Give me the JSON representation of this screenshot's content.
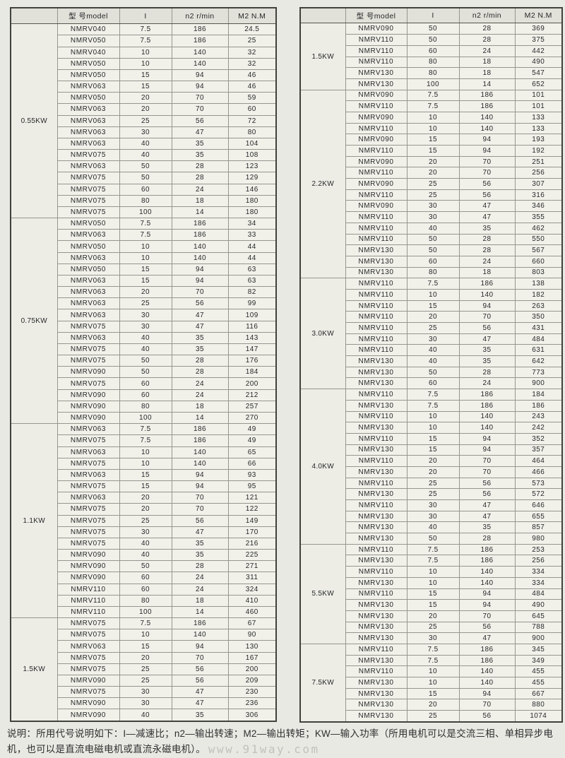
{
  "header": {
    "power_col": "",
    "model_col": "型 号model",
    "ratio_col": "I",
    "speed_col": "n2 r/min",
    "torque_col": "M2 N.M"
  },
  "note": {
    "text": "说明：所用代号说明如下：I—减速比；n2—输出转速；M2—输出转矩；KW—输入功率（所用电机可以是交流三相、单相异步电机，也可以是直流电磁电机或直流永磁电机）。",
    "watermark": "www.91way.com"
  },
  "tables": [
    {
      "name": "left",
      "groups": [
        {
          "power": "0.55KW",
          "rows": [
            [
              "NMRV040",
              "7.5",
              "186",
              "24.5"
            ],
            [
              "NMRV050",
              "7.5",
              "186",
              "25"
            ],
            [
              "NMRV040",
              "10",
              "140",
              "32"
            ],
            [
              "NMRV050",
              "10",
              "140",
              "32"
            ],
            [
              "NMRV050",
              "15",
              "94",
              "46"
            ],
            [
              "NMRV063",
              "15",
              "94",
              "46"
            ],
            [
              "NMRV050",
              "20",
              "70",
              "59"
            ],
            [
              "NMRV063",
              "20",
              "70",
              "60"
            ],
            [
              "NMRV063",
              "25",
              "56",
              "72"
            ],
            [
              "NMRV063",
              "30",
              "47",
              "80"
            ],
            [
              "NMRV063",
              "40",
              "35",
              "104"
            ],
            [
              "NMRV075",
              "40",
              "35",
              "108"
            ],
            [
              "NMRV063",
              "50",
              "28",
              "123"
            ],
            [
              "NMRV075",
              "50",
              "28",
              "129"
            ],
            [
              "NMRV075",
              "60",
              "24",
              "146"
            ],
            [
              "NMRV075",
              "80",
              "18",
              "180"
            ],
            [
              "NMRV075",
              "100",
              "14",
              "180"
            ]
          ]
        },
        {
          "power": "0.75KW",
          "rows": [
            [
              "NMRV050",
              "7.5",
              "186",
              "34"
            ],
            [
              "NMRV063",
              "7.5",
              "186",
              "33"
            ],
            [
              "NMRV050",
              "10",
              "140",
              "44"
            ],
            [
              "NMRV063",
              "10",
              "140",
              "44"
            ],
            [
              "NMRV050",
              "15",
              "94",
              "63"
            ],
            [
              "NMRV063",
              "15",
              "94",
              "63"
            ],
            [
              "NMRV063",
              "20",
              "70",
              "82"
            ],
            [
              "NMRV063",
              "25",
              "56",
              "99"
            ],
            [
              "NMRV063",
              "30",
              "47",
              "109"
            ],
            [
              "NMRV075",
              "30",
              "47",
              "116"
            ],
            [
              "NMRV063",
              "40",
              "35",
              "143"
            ],
            [
              "NMRV075",
              "40",
              "35",
              "147"
            ],
            [
              "NMRV075",
              "50",
              "28",
              "176"
            ],
            [
              "NMRV090",
              "50",
              "28",
              "184"
            ],
            [
              "NMRV075",
              "60",
              "24",
              "200"
            ],
            [
              "NMRV090",
              "60",
              "24",
              "212"
            ],
            [
              "NMRV090",
              "80",
              "18",
              "257"
            ],
            [
              "NMRV090",
              "100",
              "14",
              "270"
            ]
          ]
        },
        {
          "power": "1.1KW",
          "rows": [
            [
              "NMRV063",
              "7.5",
              "186",
              "49"
            ],
            [
              "NMRV075",
              "7.5",
              "186",
              "49"
            ],
            [
              "NMRV063",
              "10",
              "140",
              "65"
            ],
            [
              "NMRV075",
              "10",
              "140",
              "66"
            ],
            [
              "NMRV063",
              "15",
              "94",
              "93"
            ],
            [
              "NMRV075",
              "15",
              "94",
              "95"
            ],
            [
              "NMRV063",
              "20",
              "70",
              "121"
            ],
            [
              "NMRV075",
              "20",
              "70",
              "122"
            ],
            [
              "NMRV075",
              "25",
              "56",
              "149"
            ],
            [
              "NMRV075",
              "30",
              "47",
              "170"
            ],
            [
              "NMRV075",
              "40",
              "35",
              "216"
            ],
            [
              "NMRV090",
              "40",
              "35",
              "225"
            ],
            [
              "NMRV090",
              "50",
              "28",
              "271"
            ],
            [
              "NMRV090",
              "60",
              "24",
              "311"
            ],
            [
              "NMRV110",
              "60",
              "24",
              "324"
            ],
            [
              "NMRV110",
              "80",
              "18",
              "410"
            ],
            [
              "NMRV110",
              "100",
              "14",
              "460"
            ]
          ]
        },
        {
          "power": "1.5KW",
          "rows": [
            [
              "NMRV075",
              "7.5",
              "186",
              "67"
            ],
            [
              "NMRV075",
              "10",
              "140",
              "90"
            ],
            [
              "NMRV063",
              "15",
              "94",
              "130"
            ],
            [
              "NMRV075",
              "20",
              "70",
              "167"
            ],
            [
              "NMRV075",
              "25",
              "56",
              "200"
            ],
            [
              "NMRV090",
              "25",
              "56",
              "209"
            ],
            [
              "NMRV075",
              "30",
              "47",
              "230"
            ],
            [
              "NMRV090",
              "30",
              "47",
              "236"
            ],
            [
              "NMRV090",
              "40",
              "35",
              "306"
            ]
          ]
        }
      ]
    },
    {
      "name": "right",
      "groups": [
        {
          "power": "1.5KW",
          "rows": [
            [
              "NMRV090",
              "50",
              "28",
              "369"
            ],
            [
              "NMRV110",
              "50",
              "28",
              "375"
            ],
            [
              "NMRV110",
              "60",
              "24",
              "442"
            ],
            [
              "NMRV110",
              "80",
              "18",
              "490"
            ],
            [
              "NMRV130",
              "80",
              "18",
              "547"
            ],
            [
              "NMRV130",
              "100",
              "14",
              "652"
            ]
          ]
        },
        {
          "power": "2.2KW",
          "rows": [
            [
              "NMRV090",
              "7.5",
              "186",
              "101"
            ],
            [
              "NMRV110",
              "7.5",
              "186",
              "101"
            ],
            [
              "NMRV090",
              "10",
              "140",
              "133"
            ],
            [
              "NMRV110",
              "10",
              "140",
              "133"
            ],
            [
              "NMRV090",
              "15",
              "94",
              "193"
            ],
            [
              "NMRV110",
              "15",
              "94",
              "192"
            ],
            [
              "NMRV090",
              "20",
              "70",
              "251"
            ],
            [
              "NMRV110",
              "20",
              "70",
              "256"
            ],
            [
              "NMRV090",
              "25",
              "56",
              "307"
            ],
            [
              "NMRV110",
              "25",
              "56",
              "316"
            ],
            [
              "NMRV090",
              "30",
              "47",
              "346"
            ],
            [
              "NMRV110",
              "30",
              "47",
              "355"
            ],
            [
              "NMRV110",
              "40",
              "35",
              "462"
            ],
            [
              "NMRV110",
              "50",
              "28",
              "550"
            ],
            [
              "NMRV130",
              "50",
              "28",
              "567"
            ],
            [
              "NMRV130",
              "60",
              "24",
              "660"
            ],
            [
              "NMRV130",
              "80",
              "18",
              "803"
            ]
          ]
        },
        {
          "power": "3.0KW",
          "rows": [
            [
              "NMRV110",
              "7.5",
              "186",
              "138"
            ],
            [
              "NMRV110",
              "10",
              "140",
              "182"
            ],
            [
              "NMRV110",
              "15",
              "94",
              "263"
            ],
            [
              "NMRV110",
              "20",
              "70",
              "350"
            ],
            [
              "NMRV110",
              "25",
              "56",
              "431"
            ],
            [
              "NMRV110",
              "30",
              "47",
              "484"
            ],
            [
              "NMRV110",
              "40",
              "35",
              "631"
            ],
            [
              "NMRV130",
              "40",
              "35",
              "642"
            ],
            [
              "NMRV130",
              "50",
              "28",
              "773"
            ],
            [
              "NMRV130",
              "60",
              "24",
              "900"
            ]
          ]
        },
        {
          "power": "4.0KW",
          "rows": [
            [
              "NMRV110",
              "7.5",
              "186",
              "184"
            ],
            [
              "NMRV130",
              "7.5",
              "186",
              "186"
            ],
            [
              "NMRV110",
              "10",
              "140",
              "243"
            ],
            [
              "NMRV130",
              "10",
              "140",
              "242"
            ],
            [
              "NMRV110",
              "15",
              "94",
              "352"
            ],
            [
              "NMRV130",
              "15",
              "94",
              "357"
            ],
            [
              "NMRV110",
              "20",
              "70",
              "464"
            ],
            [
              "NMRV130",
              "20",
              "70",
              "466"
            ],
            [
              "NMRV110",
              "25",
              "56",
              "573"
            ],
            [
              "NMRV130",
              "25",
              "56",
              "572"
            ],
            [
              "NMRV110",
              "30",
              "47",
              "646"
            ],
            [
              "NMRV130",
              "30",
              "47",
              "655"
            ],
            [
              "NMRV130",
              "40",
              "35",
              "857"
            ],
            [
              "NMRV130",
              "50",
              "28",
              "980"
            ]
          ]
        },
        {
          "power": "5.5KW",
          "rows": [
            [
              "NMRV110",
              "7.5",
              "186",
              "253"
            ],
            [
              "NMRV130",
              "7.5",
              "186",
              "256"
            ],
            [
              "NMRV110",
              "10",
              "140",
              "334"
            ],
            [
              "NMRV130",
              "10",
              "140",
              "334"
            ],
            [
              "NMRV110",
              "15",
              "94",
              "484"
            ],
            [
              "NMRV130",
              "15",
              "94",
              "490"
            ],
            [
              "NMRV130",
              "20",
              "70",
              "645"
            ],
            [
              "NMRV130",
              "25",
              "56",
              "788"
            ],
            [
              "NMRV130",
              "30",
              "47",
              "900"
            ]
          ]
        },
        {
          "power": "7.5KW",
          "rows": [
            [
              "NMRV110",
              "7.5",
              "186",
              "345"
            ],
            [
              "NMRV130",
              "7.5",
              "186",
              "349"
            ],
            [
              "NMRV110",
              "10",
              "140",
              "455"
            ],
            [
              "NMRV130",
              "10",
              "140",
              "455"
            ],
            [
              "NMRV130",
              "15",
              "94",
              "667"
            ],
            [
              "NMRV130",
              "20",
              "70",
              "880"
            ],
            [
              "NMRV130",
              "25",
              "56",
              "1074"
            ]
          ]
        }
      ]
    }
  ]
}
